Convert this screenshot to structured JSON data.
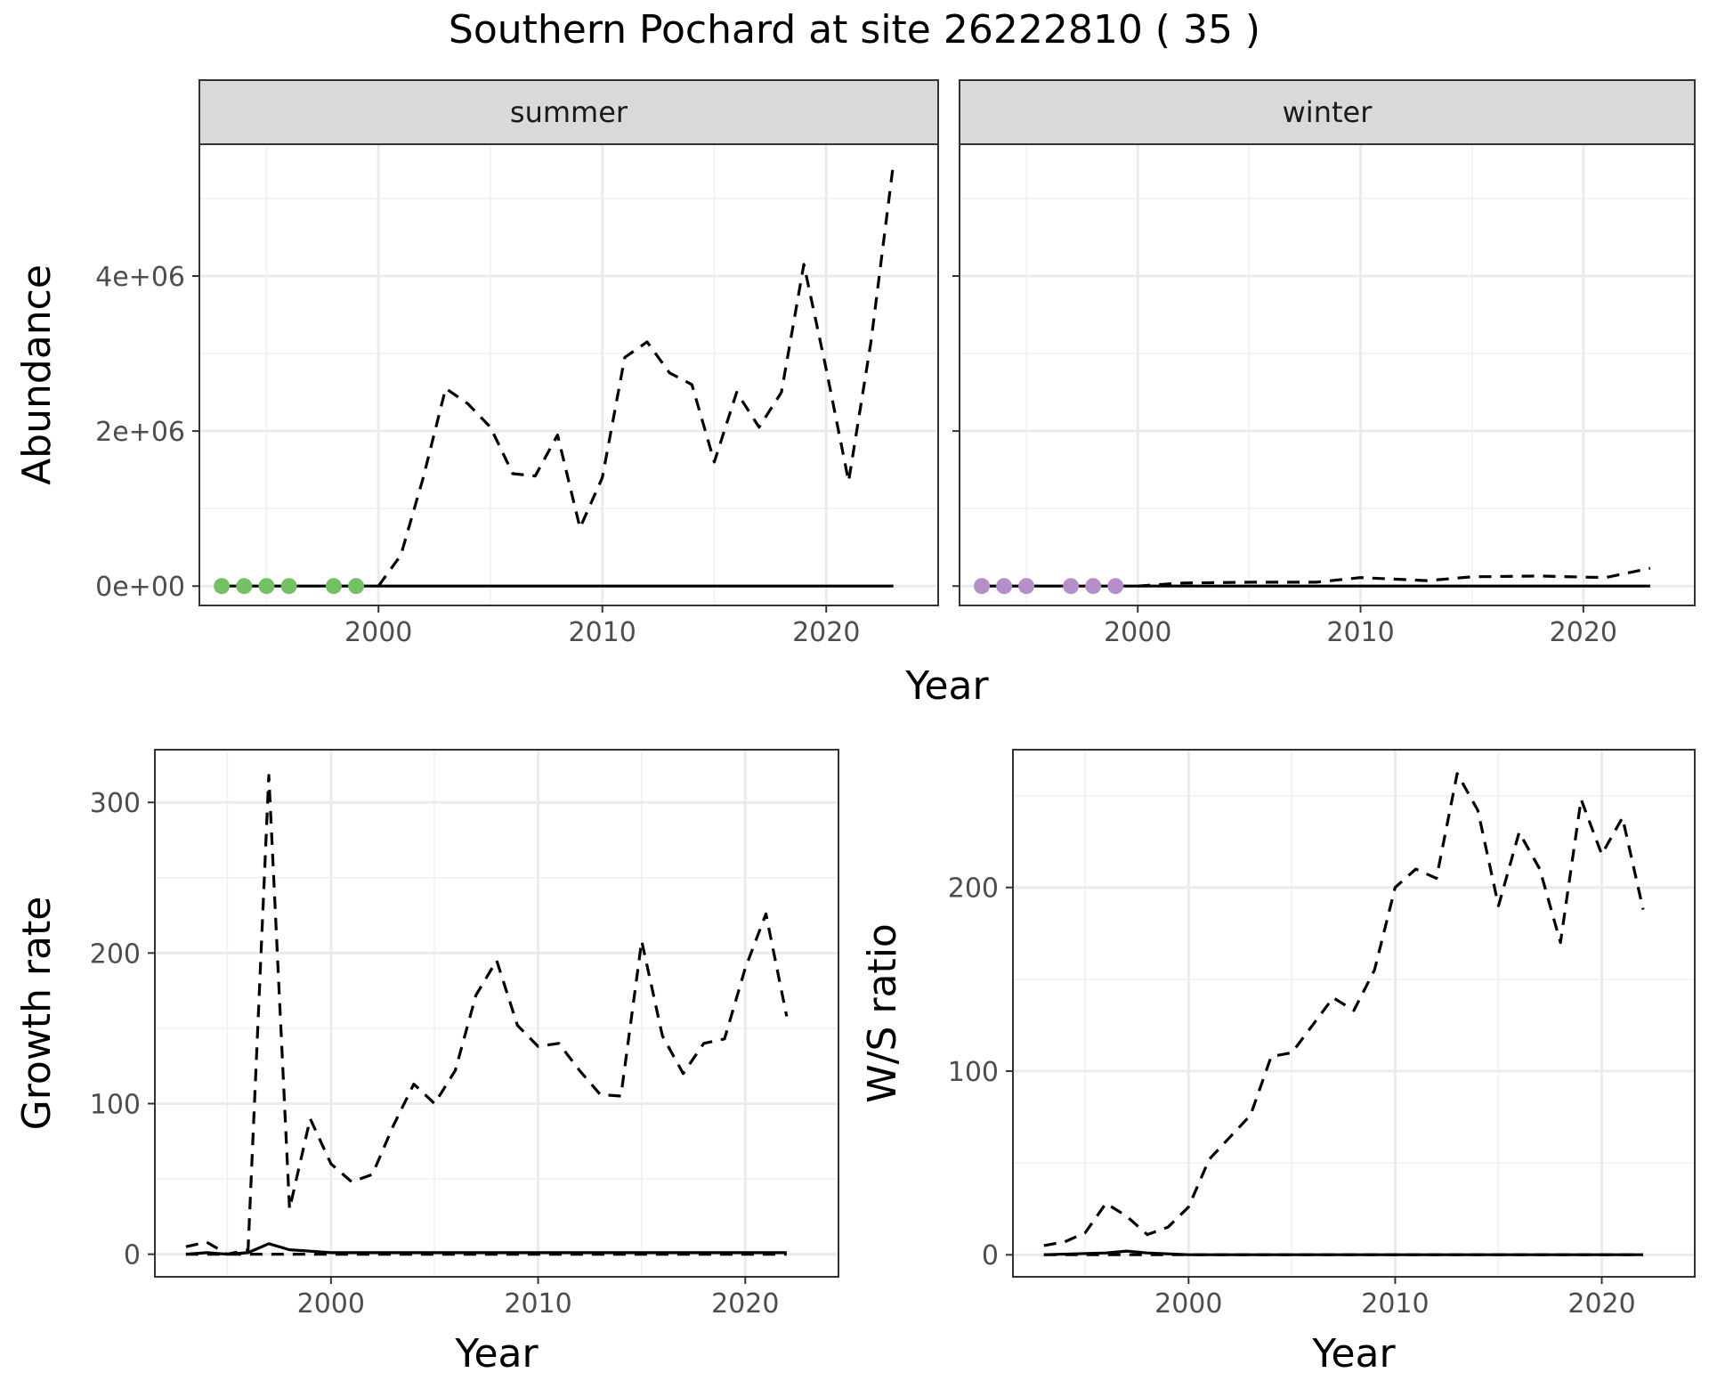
{
  "figure_title": "Southern Pochard at site 26222810 ( 35 )",
  "chart_data": [
    {
      "type": "line",
      "facet": "summer",
      "xlabel": "Year",
      "ylabel": "Abundance",
      "xlim": [
        1992,
        2025
      ],
      "ylim": [
        -250000,
        5700000
      ],
      "x_ticks": [
        2000,
        2010,
        2020
      ],
      "x_tick_labels": [
        "2000",
        "2010",
        "2020"
      ],
      "y_ticks": [
        0,
        2000000,
        4000000
      ],
      "y_tick_labels": [
        "0e+00",
        "2e+06",
        "4e+06"
      ],
      "grid": true,
      "series": [
        {
          "style": "dashed",
          "x": [
            2000,
            2001,
            2002,
            2003,
            2004,
            2005,
            2006,
            2007,
            2008,
            2009,
            2010,
            2011,
            2012,
            2013,
            2014,
            2015,
            2016,
            2017,
            2018,
            2019,
            2020,
            2021,
            2022,
            2023
          ],
          "y": [
            0,
            400000,
            1400000,
            2550000,
            2350000,
            2050000,
            1450000,
            1420000,
            1950000,
            750000,
            1400000,
            2950000,
            3150000,
            2750000,
            2600000,
            1600000,
            2500000,
            2050000,
            2500000,
            4150000,
            2800000,
            1350000,
            3150000,
            5450000
          ]
        },
        {
          "style": "solid",
          "x": [
            1993,
            2023
          ],
          "y": [
            0,
            0
          ]
        },
        {
          "style": "points",
          "color": "#74c165",
          "x": [
            1993,
            1994,
            1995,
            1996,
            1998,
            1999
          ],
          "y": [
            0,
            0,
            0,
            0,
            0,
            0
          ]
        }
      ]
    },
    {
      "type": "line",
      "facet": "winter",
      "xlabel": "Year",
      "ylabel": "",
      "xlim": [
        1992,
        2025
      ],
      "ylim": [
        -250000,
        5700000
      ],
      "x_ticks": [
        2000,
        2010,
        2020
      ],
      "x_tick_labels": [
        "2000",
        "2010",
        "2020"
      ],
      "y_ticks": [
        0,
        2000000,
        4000000
      ],
      "grid": true,
      "series": [
        {
          "style": "dashed",
          "x": [
            2000,
            2002,
            2005,
            2008,
            2010,
            2013,
            2015,
            2018,
            2021,
            2023
          ],
          "y": [
            0,
            40000,
            50000,
            50000,
            110000,
            70000,
            120000,
            130000,
            110000,
            230000
          ]
        },
        {
          "style": "solid",
          "x": [
            1993,
            2023
          ],
          "y": [
            0,
            0
          ]
        },
        {
          "style": "points",
          "color": "#b48fc9",
          "x": [
            1993,
            1994,
            1995,
            1997,
            1998,
            1999
          ],
          "y": [
            0,
            0,
            0,
            0,
            0,
            0
          ]
        }
      ]
    },
    {
      "type": "line",
      "xlabel": "Year",
      "ylabel": "Growth rate",
      "xlim": [
        1991.5,
        2024.5
      ],
      "ylim": [
        -15,
        335
      ],
      "x_ticks": [
        2000,
        2010,
        2020
      ],
      "x_tick_labels": [
        "2000",
        "2010",
        "2020"
      ],
      "y_ticks": [
        0,
        100,
        200,
        300
      ],
      "y_tick_labels": [
        "0",
        "100",
        "200",
        "300"
      ],
      "grid": true,
      "series": [
        {
          "style": "dashed",
          "x": [
            1993,
            1994,
            1995,
            1996,
            1997,
            1998,
            1999,
            2000,
            2001,
            2002,
            2003,
            2004,
            2005,
            2006,
            2007,
            2008,
            2009,
            2010,
            2011,
            2012,
            2013,
            2014,
            2015,
            2016,
            2017,
            2018,
            2019,
            2020,
            2021,
            2022
          ],
          "y": [
            5,
            8,
            0,
            3,
            318,
            30,
            90,
            60,
            48,
            53,
            85,
            113,
            100,
            122,
            172,
            195,
            152,
            138,
            140,
            122,
            106,
            105,
            208,
            145,
            120,
            140,
            143,
            190,
            226,
            158
          ]
        },
        {
          "style": "solid",
          "x": [
            1993,
            1994,
            1995,
            1996,
            1997,
            1998,
            1999,
            2000,
            2005,
            2010,
            2015,
            2020,
            2022
          ],
          "y": [
            0,
            1,
            0,
            1,
            7,
            3,
            2,
            1,
            1,
            1,
            1,
            1,
            1
          ]
        },
        {
          "style": "dashed",
          "x": [
            1993,
            2022
          ],
          "y": [
            0,
            0
          ]
        }
      ]
    },
    {
      "type": "line",
      "xlabel": "Year",
      "ylabel": "W/S ratio",
      "xlim": [
        1991.5,
        2024.5
      ],
      "ylim": [
        -12,
        275
      ],
      "x_ticks": [
        2000,
        2010,
        2020
      ],
      "x_tick_labels": [
        "2000",
        "2010",
        "2020"
      ],
      "y_ticks": [
        0,
        100,
        200
      ],
      "y_tick_labels": [
        "0",
        "100",
        "200"
      ],
      "grid": true,
      "series": [
        {
          "style": "dashed",
          "x": [
            1993,
            1994,
            1995,
            1996,
            1997,
            1998,
            1999,
            2000,
            2001,
            2002,
            2003,
            2004,
            2005,
            2006,
            2007,
            2008,
            2009,
            2010,
            2011,
            2012,
            2013,
            2014,
            2015,
            2016,
            2017,
            2018,
            2019,
            2020,
            2021,
            2022
          ],
          "y": [
            5,
            7,
            12,
            28,
            21,
            11,
            15,
            26,
            52,
            64,
            76,
            108,
            110,
            125,
            140,
            133,
            155,
            200,
            210,
            205,
            262,
            242,
            190,
            230,
            210,
            170,
            248,
            218,
            238,
            188
          ]
        },
        {
          "style": "solid",
          "x": [
            1993,
            1996,
            1997,
            1998,
            2000,
            2005,
            2010,
            2015,
            2020,
            2022
          ],
          "y": [
            0,
            1,
            2,
            1,
            0,
            0,
            0,
            0,
            0,
            0
          ]
        },
        {
          "style": "dashed",
          "x": [
            1993,
            2022
          ],
          "y": [
            0,
            0
          ]
        }
      ]
    }
  ]
}
